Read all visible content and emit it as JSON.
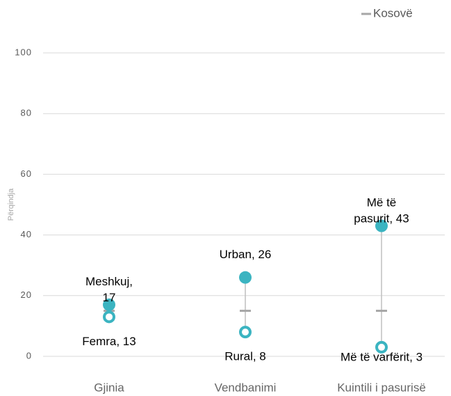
{
  "chart_data": {
    "type": "dotplot",
    "y_label": "Përqindja",
    "categories": [
      "Gjinia",
      "Vendbanimi",
      "Kuintili i pasurisë"
    ],
    "series": [
      {
        "name": "Kosovë",
        "color": "#a6a6a6",
        "values": [
          15,
          15,
          15
        ]
      }
    ],
    "high": {
      "color": "#3bb4c1",
      "values": [
        17,
        26,
        43
      ],
      "value_labels": [
        "Meshkuj, 17",
        "Urban, 26",
        "Më të pasurit, 43"
      ]
    },
    "low": {
      "color": "#3bb4c1",
      "values": [
        13,
        8,
        3
      ],
      "value_labels": [
        "Femra, 13",
        "Rural, 8",
        "Më të varfërit, 3"
      ]
    },
    "ylim": [
      0,
      100
    ],
    "yticks": [
      0,
      20,
      40,
      60,
      80,
      100
    ],
    "grid": true,
    "legend": "top-right"
  }
}
